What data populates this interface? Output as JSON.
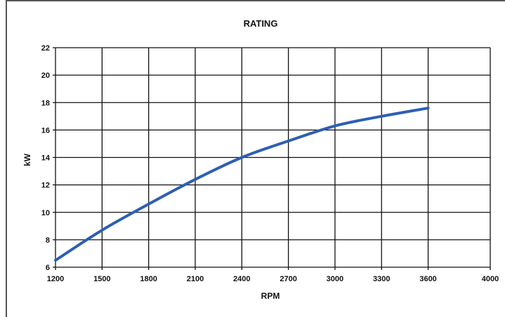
{
  "chart_data": {
    "type": "line",
    "title": "RATING",
    "xlabel": "RPM",
    "ylabel": "kW",
    "xlim": [
      1200,
      4000
    ],
    "ylim": [
      6,
      22
    ],
    "x_ticks": [
      1200,
      1500,
      1800,
      2100,
      2400,
      2700,
      3000,
      3300,
      3600,
      4000
    ],
    "y_ticks": [
      6,
      8,
      10,
      12,
      14,
      16,
      18,
      20,
      22
    ],
    "grid": true,
    "legend": "none",
    "series": [
      {
        "color": "#2d5fb3",
        "x": [
          1200,
          1500,
          1800,
          2100,
          2400,
          2700,
          3000,
          3300,
          3600
        ],
        "y": [
          6.5,
          8.7,
          10.6,
          12.4,
          14.0,
          15.2,
          16.3,
          17.0,
          17.6
        ]
      }
    ]
  }
}
